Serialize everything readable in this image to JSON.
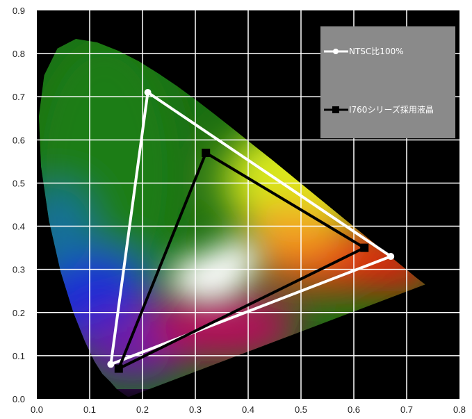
{
  "chart_data": {
    "type": "scatter",
    "title": "",
    "xlabel": "",
    "ylabel": "",
    "xlim": [
      0.0,
      0.8
    ],
    "ylim": [
      0.0,
      0.9
    ],
    "x_ticks": [
      "0.0",
      "0.1",
      "0.2",
      "0.3",
      "0.4",
      "0.5",
      "0.6",
      "0.7",
      "0.8"
    ],
    "y_ticks": [
      "0.0",
      "0.1",
      "0.2",
      "0.3",
      "0.4",
      "0.5",
      "0.6",
      "0.7",
      "0.8",
      "0.9"
    ],
    "grid": true,
    "background": "#000000",
    "legend_position": "top-right",
    "locus": [
      [
        0.175,
        0.005
      ],
      [
        0.174,
        0.005
      ],
      [
        0.172,
        0.005
      ],
      [
        0.167,
        0.009
      ],
      [
        0.161,
        0.014
      ],
      [
        0.151,
        0.023
      ],
      [
        0.139,
        0.04
      ],
      [
        0.124,
        0.058
      ],
      [
        0.109,
        0.087
      ],
      [
        0.091,
        0.133
      ],
      [
        0.069,
        0.201
      ],
      [
        0.045,
        0.295
      ],
      [
        0.023,
        0.413
      ],
      [
        0.008,
        0.538
      ],
      [
        0.004,
        0.655
      ],
      [
        0.014,
        0.75
      ],
      [
        0.039,
        0.812
      ],
      [
        0.074,
        0.834
      ],
      [
        0.114,
        0.826
      ],
      [
        0.155,
        0.806
      ],
      [
        0.193,
        0.782
      ],
      [
        0.23,
        0.754
      ],
      [
        0.266,
        0.724
      ],
      [
        0.302,
        0.692
      ],
      [
        0.337,
        0.659
      ],
      [
        0.373,
        0.624
      ],
      [
        0.409,
        0.589
      ],
      [
        0.445,
        0.554
      ],
      [
        0.482,
        0.517
      ],
      [
        0.519,
        0.48
      ],
      [
        0.555,
        0.444
      ],
      [
        0.59,
        0.409
      ],
      [
        0.622,
        0.377
      ],
      [
        0.652,
        0.347
      ],
      [
        0.678,
        0.321
      ],
      [
        0.7,
        0.299
      ],
      [
        0.718,
        0.281
      ],
      [
        0.735,
        0.265
      ],
      [
        0.735,
        0.265
      ]
    ],
    "series": [
      {
        "name": "NTSC比100%",
        "color": "#ffffff",
        "marker": "circle",
        "x": [
          0.67,
          0.21,
          0.14,
          0.67
        ],
        "y": [
          0.33,
          0.71,
          0.08,
          0.33
        ]
      },
      {
        "name": "I760シリーズ採用液晶",
        "color": "#000000",
        "marker": "square",
        "x": [
          0.62,
          0.32,
          0.155,
          0.62
        ],
        "y": [
          0.35,
          0.57,
          0.07,
          0.35
        ]
      }
    ]
  },
  "legend": {
    "items": [
      {
        "label": "NTSC比100%"
      },
      {
        "label": "I760シリーズ採用液晶"
      }
    ]
  }
}
